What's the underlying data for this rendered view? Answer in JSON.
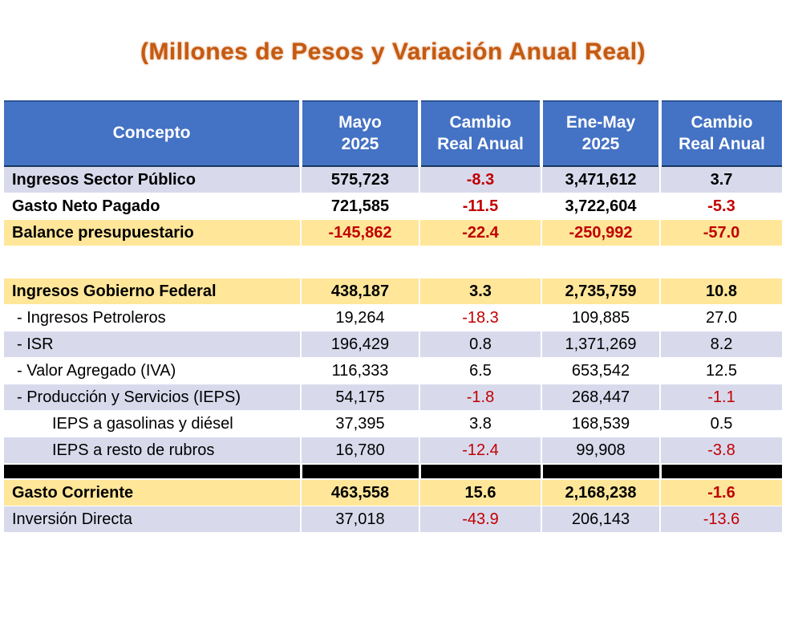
{
  "title": "(Millones de Pesos y Variación Anual Real)",
  "colors": {
    "header_bg": "#4472C4",
    "header_text": "#FFFFFF",
    "row_lavender": "#D8DAEC",
    "row_yellow": "#FFE699",
    "row_black": "#000000",
    "negative_text": "#C00000",
    "title_orange": "#C55A11"
  },
  "table": {
    "headers": [
      "Concepto",
      "Mayo\n2025",
      "Cambio\nReal Anual",
      "Ene-May\n2025",
      "Cambio\nReal Anual"
    ],
    "rows": [
      {
        "label": "Ingresos Sector Público",
        "values": [
          "575,723",
          "-8.3",
          "3,471,612",
          "3.7"
        ]
      },
      {
        "label": "Gasto Neto Pagado",
        "values": [
          "721,585",
          "-11.5",
          "3,722,604",
          "-5.3"
        ]
      },
      {
        "label": "Balance presupuestario",
        "values": [
          "-145,862",
          "-22.4",
          "-250,992",
          "-57.0"
        ]
      },
      {
        "label": "Ingresos Gobierno Federal",
        "values": [
          "438,187",
          "3.3",
          "2,735,759",
          "10.8"
        ]
      },
      {
        "label": "- Ingresos Petroleros",
        "values": [
          "19,264",
          "-18.3",
          "109,885",
          "27.0"
        ]
      },
      {
        "label": "- ISR",
        "values": [
          "196,429",
          "0.8",
          "1,371,269",
          "8.2"
        ]
      },
      {
        "label": "- Valor Agregado (IVA)",
        "values": [
          "116,333",
          "6.5",
          "653,542",
          "12.5"
        ]
      },
      {
        "label": "- Producción y Servicios (IEPS)",
        "values": [
          "54,175",
          "-1.8",
          "268,447",
          "-1.1"
        ]
      },
      {
        "label": "IEPS a gasolinas y diésel",
        "values": [
          "37,395",
          "3.8",
          "168,539",
          "0.5"
        ]
      },
      {
        "label": "IEPS a resto de rubros",
        "values": [
          "16,780",
          "-12.4",
          "99,908",
          "-3.8"
        ]
      },
      {
        "label": "Gasto Corriente",
        "values": [
          "463,558",
          "15.6",
          "2,168,238",
          "-1.6"
        ]
      },
      {
        "label": "Inversión Directa",
        "values": [
          "37,018",
          "-43.9",
          "206,143",
          "-13.6"
        ]
      }
    ]
  },
  "chart_data": {
    "type": "table",
    "title": "(Millones de Pesos y Variación Anual Real)",
    "columns": [
      "Concepto",
      "Mayo 2025",
      "Cambio Real Anual",
      "Ene-May 2025",
      "Cambio Real Anual"
    ],
    "rows": [
      [
        "Ingresos Sector Público",
        575723,
        -8.3,
        3471612,
        3.7
      ],
      [
        "Gasto Neto Pagado",
        721585,
        -11.5,
        3722604,
        -5.3
      ],
      [
        "Balance presupuestario",
        -145862,
        -22.4,
        -250992,
        -57.0
      ],
      [
        "Ingresos Gobierno Federal",
        438187,
        3.3,
        2735759,
        10.8
      ],
      [
        "Ingresos Petroleros",
        19264,
        -18.3,
        109885,
        27.0
      ],
      [
        "ISR",
        196429,
        0.8,
        1371269,
        8.2
      ],
      [
        "Valor Agregado (IVA)",
        116333,
        6.5,
        653542,
        12.5
      ],
      [
        "Producción y Servicios (IEPS)",
        54175,
        -1.8,
        268447,
        -1.1
      ],
      [
        "IEPS a gasolinas y diésel",
        37395,
        3.8,
        168539,
        0.5
      ],
      [
        "IEPS a resto de rubros",
        16780,
        -12.4,
        99908,
        -3.8
      ],
      [
        "Gasto Corriente",
        463558,
        15.6,
        2168238,
        -1.6
      ],
      [
        "Inversión Directa",
        37018,
        -43.9,
        206143,
        -13.6
      ]
    ]
  }
}
